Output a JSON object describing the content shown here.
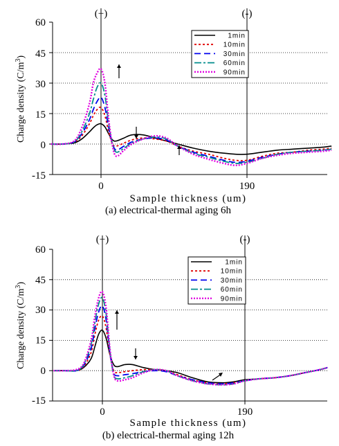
{
  "chart_data": [
    {
      "type": "line",
      "caption": "(a)    electrical-thermal aging 6h",
      "xlabel": "Sample thickness (um)",
      "ylabel": "Charge density (C/m3)",
      "ylabel_main": "Charge density (C/m",
      "ylabel_sup": "3",
      "ylabel_close": ")",
      "ylim": [
        -15,
        60
      ],
      "yticks": [
        "60",
        "45",
        "30",
        "15",
        "0",
        "-15"
      ],
      "xticks": [
        "0",
        "190"
      ],
      "electrode_labels": [
        "(+)",
        "(-)"
      ],
      "grid": "horizontal dotted",
      "legend_position": "top-right",
      "x": [
        -65,
        -50,
        -35,
        -25,
        -15,
        -10,
        -5,
        0,
        5,
        10,
        15,
        20,
        30,
        40,
        55,
        70,
        85,
        100,
        120,
        140,
        160,
        175,
        190,
        210,
        230,
        250,
        270,
        290,
        300
      ],
      "series": [
        {
          "name": "1min",
          "color": "#000000",
          "dash": "solid",
          "width": 1.6,
          "values": [
            0,
            0,
            0.5,
            2.5,
            6,
            8,
            9.5,
            10,
            8.5,
            5,
            2,
            1.5,
            3,
            4.5,
            4.5,
            3,
            1.5,
            0,
            -2,
            -3.5,
            -4.5,
            -5,
            -5,
            -4,
            -3,
            -2.5,
            -2,
            -1.5,
            -1
          ]
        },
        {
          "name": "10min",
          "color": "#e00000",
          "dash": "3,3",
          "width": 1.8,
          "values": [
            0,
            0,
            1,
            4,
            10,
            14,
            17,
            18,
            14,
            6,
            0,
            -1,
            0.5,
            2,
            3,
            2.5,
            1.5,
            -1,
            -3.5,
            -5,
            -7,
            -8,
            -8,
            -6,
            -4.5,
            -4,
            -3,
            -2.5,
            -2
          ]
        },
        {
          "name": "30min",
          "color": "#0000ee",
          "dash": "9,5",
          "width": 1.8,
          "values": [
            0,
            0,
            1,
            5,
            12,
            17,
            21,
            23,
            18,
            8,
            0,
            -3,
            -1,
            1,
            2.5,
            3,
            2,
            -1,
            -4,
            -6,
            -8,
            -9,
            -8.5,
            -6.5,
            -5,
            -4,
            -3.5,
            -3,
            -2.5
          ]
        },
        {
          "name": "60min",
          "color": "#008c8c",
          "dash": "10,3,3,3",
          "width": 1.8,
          "values": [
            0,
            0,
            1,
            6,
            15,
            22,
            28,
            30,
            24,
            10,
            0,
            -4,
            -2,
            0.5,
            2.5,
            3.5,
            2.5,
            -1,
            -4.5,
            -6.5,
            -8.5,
            -9.5,
            -9,
            -7,
            -5,
            -4,
            -3.5,
            -3,
            -2.5
          ]
        },
        {
          "name": "90min",
          "color": "#e000e0",
          "dash": "2,2",
          "width": 2.4,
          "values": [
            0,
            0,
            1.5,
            8,
            20,
            30,
            35,
            37,
            30,
            12,
            -1,
            -6,
            -3,
            0,
            2.5,
            4,
            3,
            -1,
            -5,
            -7.5,
            -9.5,
            -10.5,
            -9.5,
            -7,
            -5.5,
            -4.5,
            -4,
            -3.5,
            -3
          ]
        }
      ]
    },
    {
      "type": "line",
      "caption": "(b)    electrical-thermal aging 12h",
      "xlabel": "Sample thickness (um)",
      "ylabel": "Charge density (C/m3)",
      "ylabel_main": "Charge density (C/m",
      "ylabel_sup": "3",
      "ylabel_close": ")",
      "ylim": [
        -15,
        60
      ],
      "yticks": [
        "60",
        "45",
        "30",
        "15",
        "0",
        "-15"
      ],
      "xticks": [
        "0",
        "190"
      ],
      "electrode_labels": [
        "(+)",
        "(-)"
      ],
      "grid": "horizontal dotted",
      "legend_position": "top-right",
      "x": [
        -65,
        -50,
        -35,
        -25,
        -15,
        -10,
        -5,
        0,
        5,
        10,
        15,
        20,
        30,
        40,
        55,
        70,
        85,
        100,
        120,
        140,
        160,
        175,
        190,
        210,
        230,
        250,
        270,
        290,
        300
      ],
      "series": [
        {
          "name": "1min",
          "color": "#000000",
          "dash": "solid",
          "width": 1.6,
          "values": [
            0,
            0,
            0,
            1.5,
            6,
            12,
            18,
            20,
            16,
            8,
            3,
            2,
            3,
            3,
            1.5,
            0.5,
            0,
            -1,
            -3.5,
            -5.5,
            -6,
            -5.5,
            -4.5,
            -4,
            -3.5,
            -2.5,
            -1,
            0.5,
            1.5
          ]
        },
        {
          "name": "10min",
          "color": "#e00000",
          "dash": "3,3",
          "width": 1.8,
          "values": [
            0,
            0,
            0,
            2,
            9,
            18,
            25,
            27,
            21,
            8,
            0,
            -1,
            -0.5,
            0,
            0.5,
            0.5,
            0,
            -2,
            -4.5,
            -6,
            -6.5,
            -6,
            -5,
            -4,
            -3.5,
            -2.5,
            -1,
            0.5,
            1.5
          ]
        },
        {
          "name": "30min",
          "color": "#0000ee",
          "dash": "9,5",
          "width": 1.8,
          "values": [
            0,
            0,
            0,
            2.5,
            11,
            21,
            29,
            32,
            25,
            9,
            -1,
            -2.5,
            -2,
            -1.5,
            -0.5,
            0,
            -0.5,
            -2.5,
            -4.5,
            -6,
            -6.5,
            -6,
            -5,
            -4,
            -3.5,
            -2.5,
            -1,
            0.5,
            1.5
          ]
        },
        {
          "name": "60min",
          "color": "#008c8c",
          "dash": "10,3,3,3",
          "width": 1.8,
          "values": [
            0,
            0,
            0,
            3,
            13,
            24,
            33,
            36,
            28,
            10,
            -2,
            -4,
            -3.5,
            -2.5,
            -0.5,
            0.5,
            0,
            -2.5,
            -5,
            -6.5,
            -7,
            -6.5,
            -5,
            -4,
            -3.5,
            -2.5,
            -1,
            0.5,
            1.5
          ]
        },
        {
          "name": "90min",
          "color": "#e000e0",
          "dash": "2,2",
          "width": 2.4,
          "values": [
            0,
            0,
            0.5,
            3.5,
            15,
            27,
            36,
            39,
            31,
            11,
            -2,
            -5,
            -4.5,
            -3.5,
            -1,
            0.5,
            0,
            -2.5,
            -5,
            -6.5,
            -7,
            -6.5,
            -5,
            -4,
            -3.5,
            -2.5,
            -1,
            0.5,
            1.5
          ]
        }
      ]
    }
  ]
}
